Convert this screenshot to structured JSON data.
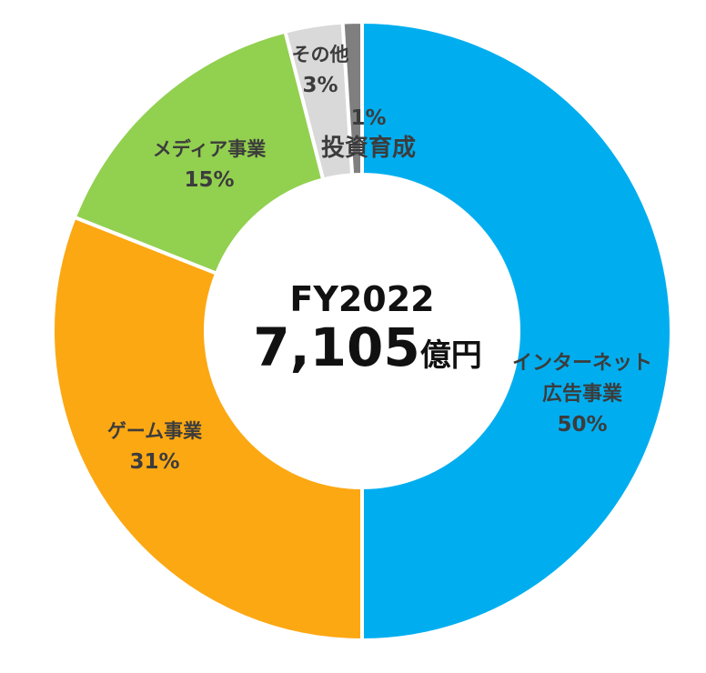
{
  "chart_data": {
    "type": "donut",
    "center_title": "FY2022",
    "center_value": "7,105",
    "center_unit": "億円",
    "slices": [
      {
        "name": "インターネット広告事業",
        "label_lines": [
          "インターネット",
          "広告事業"
        ],
        "value": 50,
        "value_label": "50%",
        "color": "#00aeef"
      },
      {
        "name": "ゲーム事業",
        "label_lines": [
          "ゲーム事業"
        ],
        "value": 31,
        "value_label": "31%",
        "color": "#fca813"
      },
      {
        "name": "メディア事業",
        "label_lines": [
          "メディア事業"
        ],
        "value": 15,
        "value_label": "15%",
        "color": "#92d050"
      },
      {
        "name": "その他",
        "label_lines": [
          "その他"
        ],
        "value": 3,
        "value_label": "3%",
        "color": "#d9d9d9"
      },
      {
        "name": "投資育成",
        "label_lines": [
          "投資育成"
        ],
        "value": 1,
        "value_label": "1%",
        "color": "#7f7f7f"
      }
    ]
  }
}
